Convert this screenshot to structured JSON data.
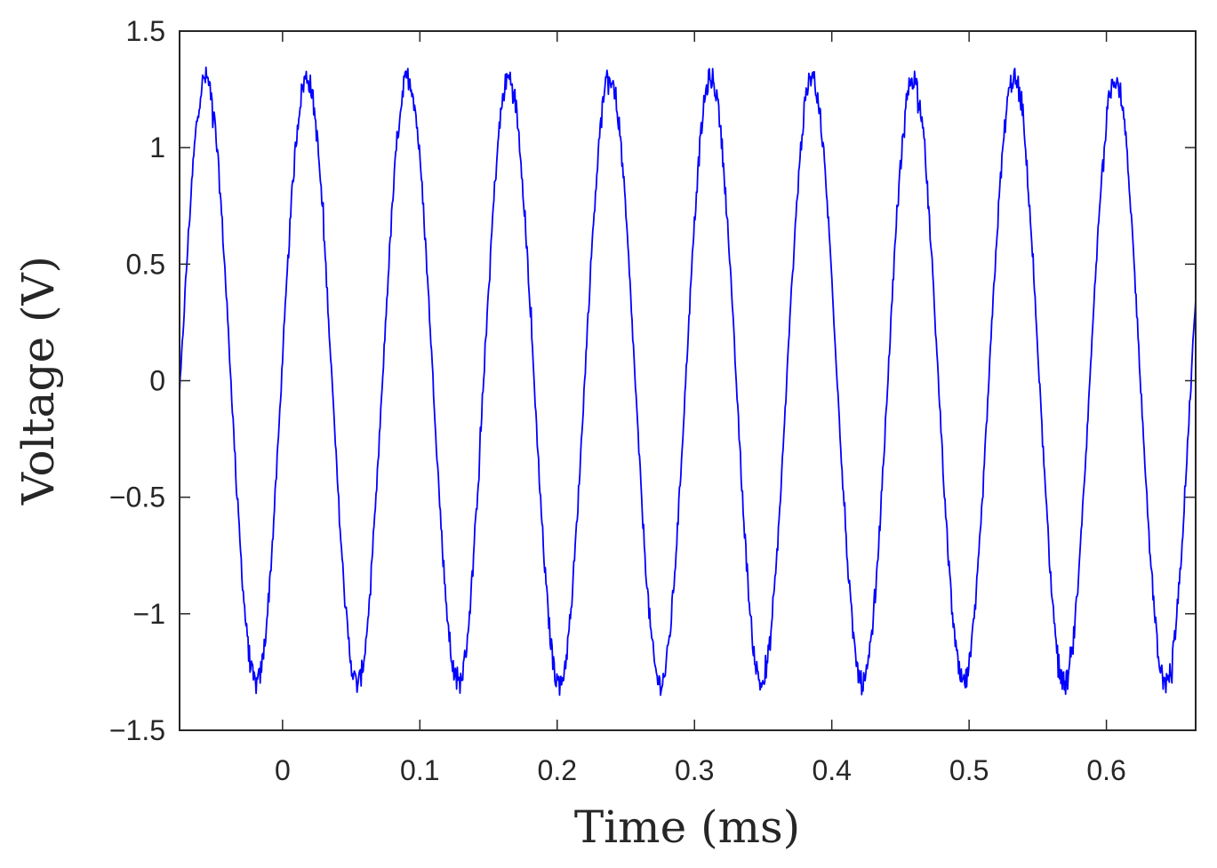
{
  "chart_data": {
    "type": "line",
    "xlabel": "Time (ms)",
    "ylabel": "Voltage (V)",
    "xlim": [
      -0.075,
      0.665
    ],
    "ylim": [
      -1.5,
      1.5
    ],
    "xticks": [
      0,
      0.1,
      0.2,
      0.3,
      0.4,
      0.5,
      0.6
    ],
    "xtick_labels": [
      "0",
      "0.1",
      "0.2",
      "0.3",
      "0.4",
      "0.5",
      "0.6"
    ],
    "yticks": [
      -1.5,
      -1,
      -0.5,
      0,
      0.5,
      1,
      1.5
    ],
    "ytick_labels": [
      "−1.5",
      "−1",
      "−0.5",
      "0",
      "0.5",
      "1",
      "1.5"
    ],
    "grid": false,
    "series": [
      {
        "color": "#0000ff",
        "signal": {
          "kind": "noisy sine",
          "amplitude": 1.3,
          "period": 0.0736,
          "first_peak": -0.056,
          "noise": 0.05,
          "samples": 1500
        }
      }
    ],
    "peaks": [
      {
        "x": -0.056,
        "y": 1.36
      },
      {
        "x": 0.019,
        "y": 1.4
      },
      {
        "x": 0.092,
        "y": 1.37
      },
      {
        "x": 0.166,
        "y": 1.35
      },
      {
        "x": 0.24,
        "y": 1.37
      },
      {
        "x": 0.314,
        "y": 1.33
      },
      {
        "x": 0.387,
        "y": 1.35
      },
      {
        "x": 0.461,
        "y": 1.39
      },
      {
        "x": 0.535,
        "y": 1.37
      },
      {
        "x": 0.609,
        "y": 1.34
      }
    ],
    "troughs": [
      {
        "x": -0.019,
        "y": -1.35
      },
      {
        "x": 0.055,
        "y": -1.36
      },
      {
        "x": 0.129,
        "y": -1.35
      },
      {
        "x": 0.203,
        "y": -1.33
      },
      {
        "x": 0.277,
        "y": -1.36
      },
      {
        "x": 0.35,
        "y": -1.33
      },
      {
        "x": 0.424,
        "y": -1.43
      },
      {
        "x": 0.498,
        "y": -1.35
      },
      {
        "x": 0.572,
        "y": -1.41
      },
      {
        "x": 0.646,
        "y": -1.35
      }
    ]
  }
}
